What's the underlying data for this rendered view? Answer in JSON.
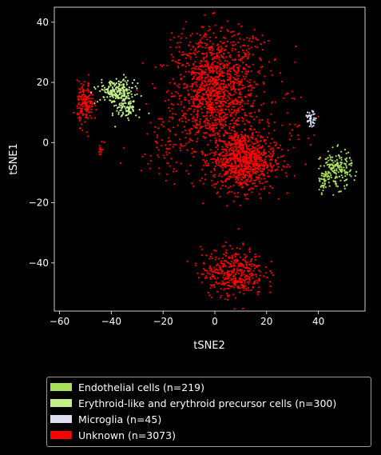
{
  "chart_data": {
    "type": "scatter",
    "title": "",
    "xlabel": "tSNE2",
    "ylabel": "tSNE1",
    "xlim": [
      -62,
      58
    ],
    "ylim": [
      -56,
      45
    ],
    "x_ticks": [
      -60,
      -40,
      -20,
      0,
      20,
      40
    ],
    "y_ticks": [
      -40,
      -20,
      0,
      20,
      40
    ],
    "legend_placement": "below",
    "background": "#000000",
    "series": [
      {
        "name": "Endothelial cells (n=219)",
        "color": "#a8e05a",
        "clusters": [
          {
            "center": [
              47,
              -9
            ],
            "spread": [
              3.0,
              3.0
            ],
            "n": 189
          },
          {
            "center": [
              42,
              -14
            ],
            "spread": [
              0.8,
              1.5
            ],
            "n": 30
          }
        ]
      },
      {
        "name": "Erythroid-like and erythroid precursor cells (n=300)",
        "color": "#c4f08a",
        "clusters": [
          {
            "center": [
              -38,
              17
            ],
            "spread": [
              3.5,
              2.0
            ],
            "n": 200
          },
          {
            "center": [
              -34,
              12
            ],
            "spread": [
              2.0,
              2.5
            ],
            "n": 100
          }
        ]
      },
      {
        "name": "Microglia (n=45)",
        "color": "#dcdcf2",
        "clusters": [
          {
            "center": [
              37,
              8
            ],
            "spread": [
              1.0,
              1.2
            ],
            "n": 45
          }
        ]
      },
      {
        "name": "Unknown (n=3073)",
        "color": "#ff0000",
        "clusters": [
          {
            "center": [
              0,
              16
            ],
            "spread": [
              8,
              9
            ],
            "n": 1250
          },
          {
            "center": [
              11,
              -6
            ],
            "spread": [
              6,
              5
            ],
            "n": 950
          },
          {
            "center": [
              7,
              -43
            ],
            "spread": [
              6,
              4
            ],
            "n": 430
          },
          {
            "center": [
              -50,
              13
            ],
            "spread": [
              1.6,
              3.5
            ],
            "n": 170
          },
          {
            "center": [
              4,
              30
            ],
            "spread": [
              12,
              5
            ],
            "n": 150
          },
          {
            "center": [
              -20,
              0
            ],
            "spread": [
              6,
              6
            ],
            "n": 70
          },
          {
            "center": [
              28,
              5
            ],
            "spread": [
              4,
              6
            ],
            "n": 40
          },
          {
            "center": [
              -44,
              -2
            ],
            "spread": [
              0.5,
              1.0
            ],
            "n": 13
          }
        ]
      }
    ]
  }
}
